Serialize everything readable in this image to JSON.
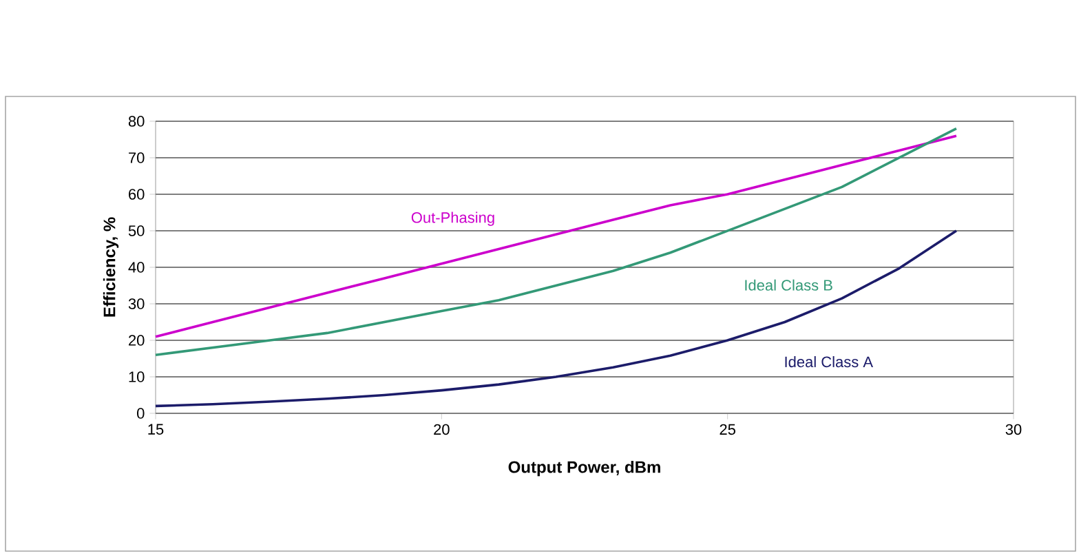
{
  "chart_data": {
    "type": "line",
    "xlabel": "Output Power, dBm",
    "ylabel": "Efficiency, %",
    "x": [
      15,
      16,
      17,
      18,
      19,
      20,
      21,
      22,
      23,
      24,
      25,
      26,
      27,
      28,
      29
    ],
    "xlim": [
      15,
      30
    ],
    "xticks": [
      15,
      20,
      25,
      30
    ],
    "ylim": [
      0,
      80
    ],
    "yticks": [
      0,
      10,
      20,
      30,
      40,
      50,
      60,
      70,
      80
    ],
    "grid": "y",
    "legend": false,
    "marker": "none",
    "line_style": "solid",
    "series": [
      {
        "name": "Out-Phasing",
        "color": "#cc00cc",
        "values": [
          21,
          25,
          29,
          33,
          37,
          41,
          45,
          49,
          53,
          57,
          60,
          64,
          68,
          72,
          76
        ]
      },
      {
        "name": "Ideal Class B",
        "color": "#339977",
        "values": [
          16,
          18,
          20,
          22,
          25,
          28,
          31,
          35,
          39,
          44,
          50,
          56,
          62,
          70,
          78
        ]
      },
      {
        "name": "Ideal Class A",
        "color": "#1c1c6a",
        "values": [
          2,
          2.5,
          3.2,
          4,
          5,
          6.3,
          7.9,
          10,
          12.6,
          15.8,
          20,
          25,
          31.5,
          39.7,
          50
        ]
      }
    ]
  }
}
